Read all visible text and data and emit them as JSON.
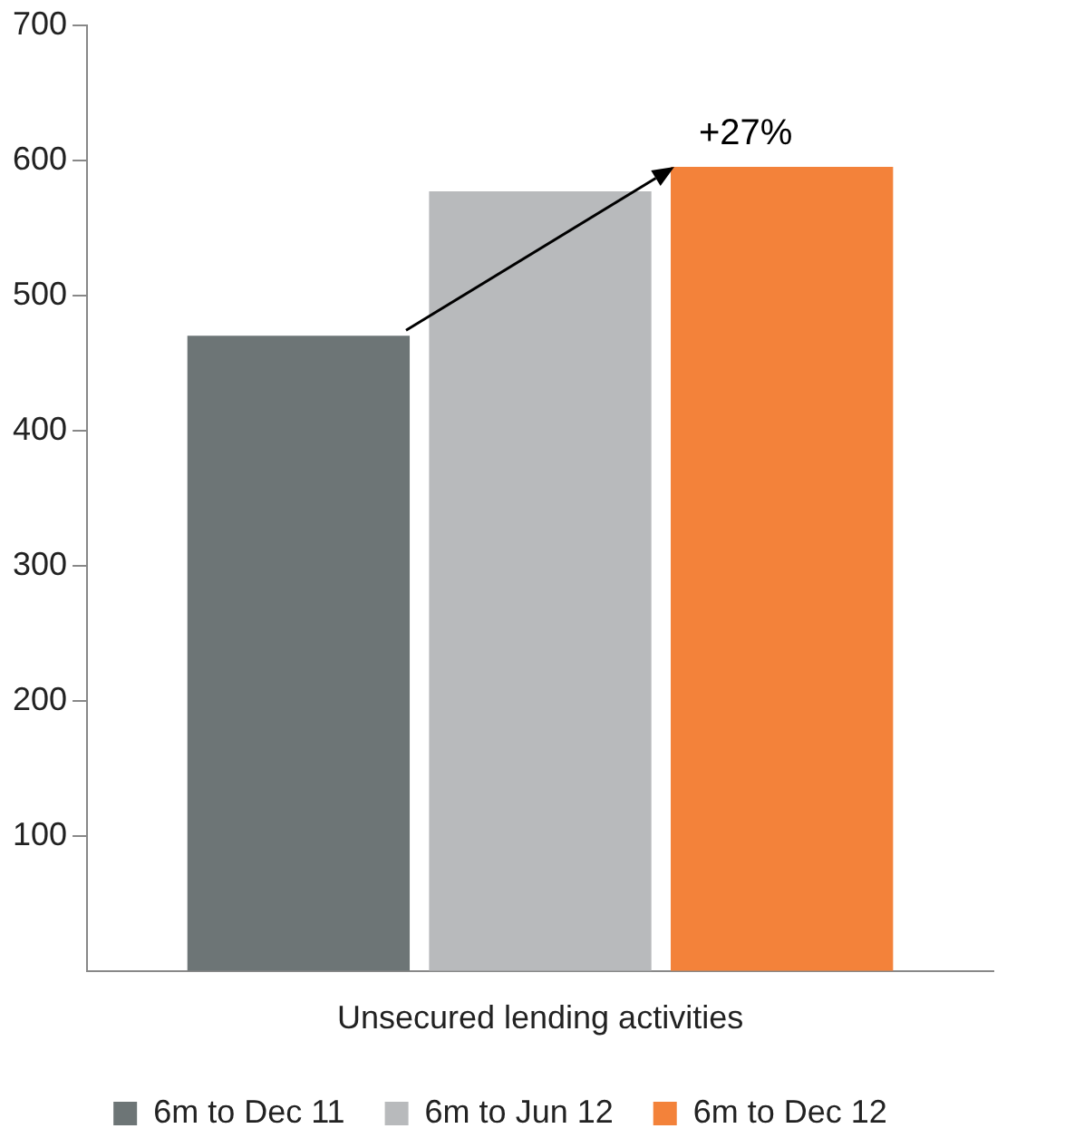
{
  "chart_data": {
    "type": "bar",
    "categories": [
      "Unsecured lending activities"
    ],
    "series": [
      {
        "name": "6m to Dec 11",
        "color": "#6d7576",
        "values": [
          470
        ]
      },
      {
        "name": "6m to Jun 12",
        "color": "#b8babc",
        "values": [
          577
        ]
      },
      {
        "name": "6m to Dec 12",
        "color": "#f3823a",
        "values": [
          595
        ]
      }
    ],
    "ylim": [
      0,
      700
    ],
    "yticks": [
      100,
      200,
      300,
      400,
      500,
      600,
      700
    ],
    "grid": false,
    "legend": "bottom",
    "annotations": [
      "+27%"
    ]
  }
}
